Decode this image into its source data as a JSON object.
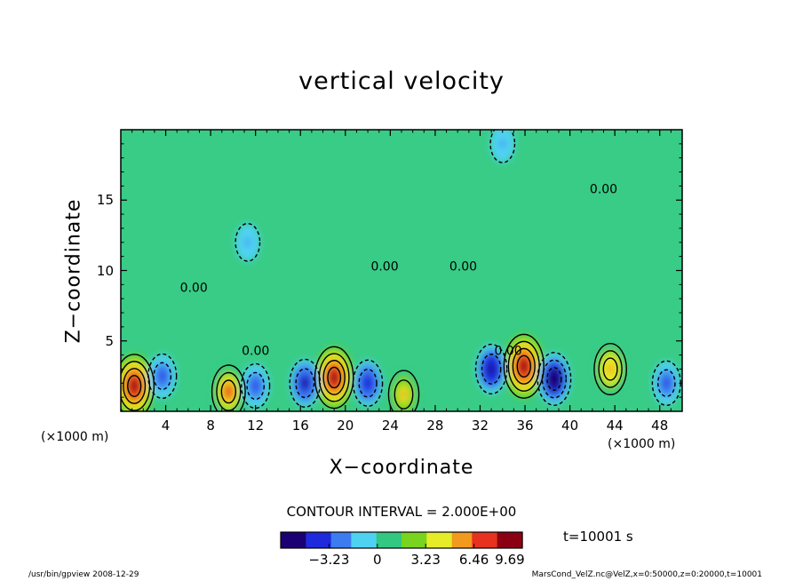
{
  "chart_data": {
    "type": "heatmap",
    "title": "vertical velocity",
    "xlabel": "X−coordinate",
    "ylabel": "Z−coordinate",
    "x_unit_label": "(×1000 m)",
    "xlim": [
      0,
      50
    ],
    "ylim": [
      0,
      20
    ],
    "x_ticks": [
      4,
      8,
      12,
      16,
      20,
      24,
      28,
      32,
      36,
      40,
      44,
      48
    ],
    "y_ticks": [
      5,
      10,
      15
    ],
    "x_tick_labels": [
      "4",
      "8",
      "12",
      "16",
      "20",
      "24",
      "28",
      "32",
      "36",
      "40",
      "44",
      "48"
    ],
    "y_tick_labels": [
      "5",
      "10",
      "15"
    ],
    "contour_interval_text": "CONTOUR INTERVAL = 2.000E+00",
    "contour_labels": [
      "0.00"
    ],
    "time_text": "t=10001  s",
    "colorbar": {
      "min": -6.46,
      "max": 9.69,
      "ticks": [
        -3.23,
        0,
        3.23,
        6.46,
        9.69
      ],
      "tick_labels": [
        "−3.23",
        "0",
        "3.23",
        "6.46",
        "9.69"
      ],
      "colors": [
        "#1a0072",
        "#1e2adc",
        "#3c7cf0",
        "#4fd2f2",
        "#32c882",
        "#78d41e",
        "#e6ec28",
        "#f29a1e",
        "#e6321e",
        "#8c0014"
      ]
    },
    "field_extrema": [
      {
        "x": 1.2,
        "z": 1.8,
        "value": 9.5
      },
      {
        "x": 9.6,
        "z": 1.4,
        "value": 6.5
      },
      {
        "x": 19.0,
        "z": 2.4,
        "value": 9.0
      },
      {
        "x": 25.2,
        "z": 1.2,
        "value": 5.0
      },
      {
        "x": 35.9,
        "z": 3.2,
        "value": 9.69
      },
      {
        "x": 43.6,
        "z": 3.0,
        "value": 6.0
      },
      {
        "x": 3.7,
        "z": 2.5,
        "value": -4.0
      },
      {
        "x": 12.0,
        "z": 1.8,
        "value": -4.0
      },
      {
        "x": 16.4,
        "z": 2.0,
        "value": -5.0
      },
      {
        "x": 22.0,
        "z": 2.0,
        "value": -4.5
      },
      {
        "x": 33.0,
        "z": 3.0,
        "value": -5.5
      },
      {
        "x": 38.6,
        "z": 2.3,
        "value": -6.46
      },
      {
        "x": 48.6,
        "z": 2.0,
        "value": -4.0
      },
      {
        "x": 11.3,
        "z": 12.0,
        "value": -2.0
      },
      {
        "x": 34.0,
        "z": 19.0,
        "value": -2.0
      }
    ],
    "grid": false,
    "legend": "colorbar bottom-center"
  },
  "footer": {
    "left": "/usr/bin/gpview   2008-12-29",
    "right": "MarsCond_VelZ.nc@VelZ,x=0:50000,z=0:20000,t=10001"
  }
}
